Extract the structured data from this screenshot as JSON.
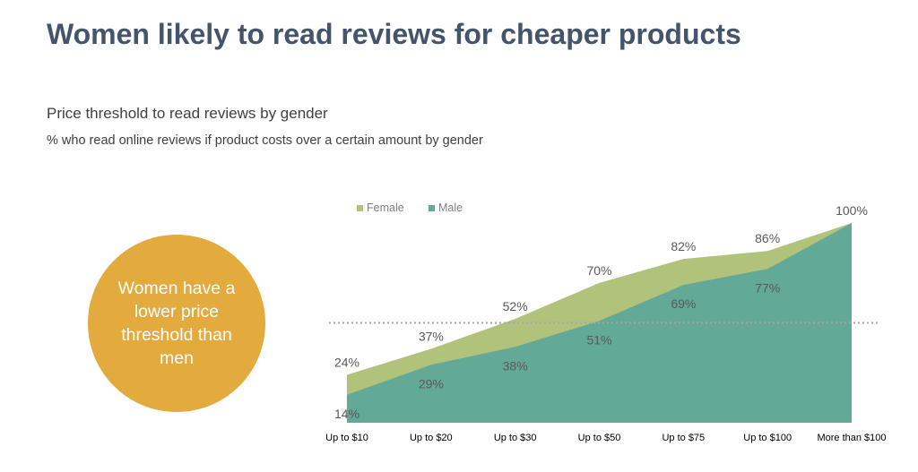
{
  "page": {
    "title": "Women likely to read reviews for cheaper products",
    "subtitle": "Price threshold to read reviews by gender",
    "description": "% who read online reviews if product costs over a certain amount by gender",
    "callout": "Women have a lower price threshold than men"
  },
  "colors": {
    "title": "#44546a",
    "female": "#b1c27a",
    "male": "#62a997",
    "callout": "#e3aa3e",
    "label": "#595959",
    "reference_line": "#a6a6a6"
  },
  "chart_data": {
    "type": "area",
    "title": "Price threshold to read reviews by gender",
    "subtitle": "% who read online reviews if product costs over a certain amount by gender",
    "categories": [
      "Up to $10",
      "Up to $20",
      "Up to $30",
      "Up to $50",
      "Up to $75",
      "Up to $100",
      "More than $100"
    ],
    "series": [
      {
        "name": "Female",
        "values": [
          24,
          37,
          52,
          70,
          82,
          86,
          100
        ],
        "labels": [
          "24%",
          "37%",
          "52%",
          "70%",
          "82%",
          "86%",
          "100%"
        ]
      },
      {
        "name": "Male",
        "values": [
          14,
          29,
          38,
          51,
          69,
          77,
          100
        ],
        "labels": [
          "14%",
          "29%",
          "38%",
          "51%",
          "69%",
          "77%",
          ""
        ]
      }
    ],
    "reference_line": 50,
    "ylim": [
      0,
      100
    ],
    "xlabel": "",
    "ylabel": "",
    "grid": false,
    "legend": "top-left"
  }
}
